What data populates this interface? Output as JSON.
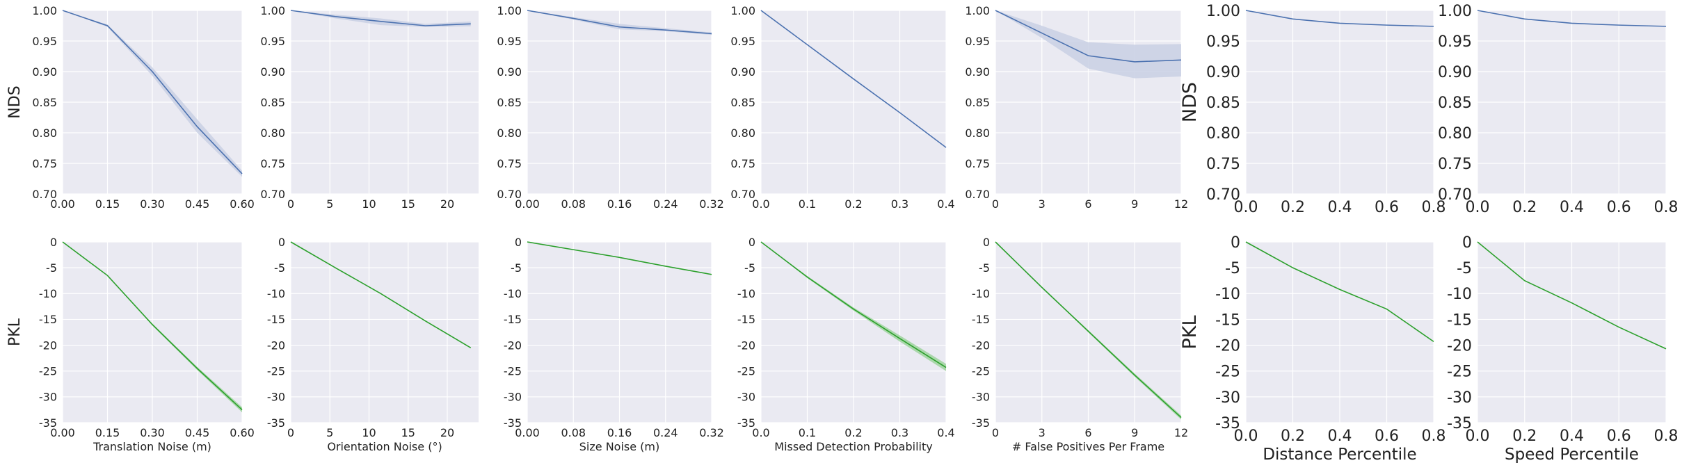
{
  "colors": {
    "panel_bg": "#eaeaf2",
    "grid": "#ffffff",
    "nds_line": "#4c72b0",
    "nds_band": "#c9d0e4",
    "pkl_line": "#2ca02c",
    "pkl_band": "#9fd39f",
    "text": "#222222"
  },
  "chart_data": [
    {
      "type": "line",
      "row": "NDS",
      "ylabel": "NDS",
      "xlabel": "",
      "x": [
        0.0,
        0.15,
        0.3,
        0.45,
        0.6
      ],
      "xticks": [
        "0.00",
        "0.15",
        "0.30",
        "0.45",
        "0.60"
      ],
      "xlim": [
        0.0,
        0.6
      ],
      "ylim": [
        0.7,
        1.0
      ],
      "yticks": [
        "0.70",
        "0.75",
        "0.80",
        "0.85",
        "0.90",
        "0.95",
        "1.00"
      ],
      "values": [
        1.0,
        0.975,
        0.9,
        0.81,
        0.733
      ],
      "band": {
        "lower": [
          1.0,
          0.973,
          0.893,
          0.8,
          0.728
        ],
        "upper": [
          1.0,
          0.977,
          0.907,
          0.822,
          0.738
        ]
      },
      "grid": true
    },
    {
      "type": "line",
      "row": "NDS",
      "ylabel": "",
      "xlabel": "",
      "x": [
        0,
        5.7,
        11.5,
        17.2,
        23
      ],
      "xticks": [
        "0",
        "5",
        "10",
        "15",
        "20"
      ],
      "xlim": [
        0,
        24
      ],
      "ylim": [
        0.7,
        1.0
      ],
      "yticks": [
        "0.70",
        "0.75",
        "0.80",
        "0.85",
        "0.90",
        "0.95",
        "1.00"
      ],
      "values": [
        1.0,
        0.99,
        0.982,
        0.975,
        0.978
      ],
      "band": {
        "lower": [
          1.0,
          0.987,
          0.976,
          0.973,
          0.974
        ],
        "upper": [
          1.0,
          0.993,
          0.987,
          0.978,
          0.982
        ]
      },
      "grid": true
    },
    {
      "type": "line",
      "row": "NDS",
      "ylabel": "",
      "xlabel": "",
      "x": [
        0.0,
        0.08,
        0.16,
        0.24,
        0.32
      ],
      "xticks": [
        "0.00",
        "0.08",
        "0.16",
        "0.24",
        "0.32"
      ],
      "xlim": [
        0.0,
        0.32
      ],
      "ylim": [
        0.7,
        1.0
      ],
      "yticks": [
        "0.70",
        "0.75",
        "0.80",
        "0.85",
        "0.90",
        "0.95",
        "1.00"
      ],
      "values": [
        1.0,
        0.987,
        0.973,
        0.968,
        0.962
      ],
      "band": {
        "lower": [
          1.0,
          0.985,
          0.969,
          0.966,
          0.96
        ],
        "upper": [
          1.0,
          0.989,
          0.978,
          0.971,
          0.964
        ]
      },
      "grid": true
    },
    {
      "type": "line",
      "row": "NDS",
      "ylabel": "",
      "xlabel": "",
      "x": [
        0.0,
        0.1,
        0.2,
        0.3,
        0.4
      ],
      "xticks": [
        "0.0",
        "0.1",
        "0.2",
        "0.3",
        "0.4"
      ],
      "xlim": [
        0.0,
        0.4
      ],
      "ylim": [
        0.7,
        1.0
      ],
      "yticks": [
        "0.70",
        "0.75",
        "0.80",
        "0.85",
        "0.90",
        "0.95",
        "1.00"
      ],
      "values": [
        1.0,
        0.944,
        0.888,
        0.833,
        0.776
      ],
      "band": {
        "lower": [
          1.0,
          0.944,
          0.888,
          0.833,
          0.776
        ],
        "upper": [
          1.0,
          0.944,
          0.888,
          0.833,
          0.776
        ]
      },
      "grid": true
    },
    {
      "type": "line",
      "row": "NDS",
      "ylabel": "",
      "xlabel": "",
      "x": [
        0,
        3,
        6,
        9,
        12
      ],
      "xticks": [
        "0",
        "3",
        "6",
        "9",
        "12"
      ],
      "xlim": [
        0,
        12
      ],
      "ylim": [
        0.7,
        1.0
      ],
      "yticks": [
        "0.70",
        "0.75",
        "0.80",
        "0.85",
        "0.90",
        "0.95",
        "1.00"
      ],
      "values": [
        1.0,
        0.963,
        0.926,
        0.916,
        0.919
      ],
      "band": {
        "lower": [
          1.0,
          0.955,
          0.905,
          0.889,
          0.892
        ],
        "upper": [
          1.0,
          0.975,
          0.948,
          0.944,
          0.945
        ]
      },
      "grid": true
    },
    {
      "type": "line",
      "row": "NDS",
      "ylabel": "NDS",
      "xlabel": "",
      "x": [
        0.0,
        0.2,
        0.4,
        0.6,
        0.8
      ],
      "xticks": [
        "0.0",
        "0.2",
        "0.4",
        "0.6",
        "0.8"
      ],
      "xlim": [
        0.0,
        0.8
      ],
      "ylim": [
        0.7,
        1.0
      ],
      "yticks": [
        "0.70",
        "0.75",
        "0.80",
        "0.85",
        "0.90",
        "0.95",
        "1.00"
      ],
      "values": [
        1.0,
        0.986,
        0.979,
        0.976,
        0.974
      ],
      "grid": true
    },
    {
      "type": "line",
      "row": "NDS",
      "ylabel": "",
      "xlabel": "",
      "x": [
        0.0,
        0.2,
        0.4,
        0.6,
        0.8
      ],
      "xticks": [
        "0.0",
        "0.2",
        "0.4",
        "0.6",
        "0.8"
      ],
      "xlim": [
        0.0,
        0.8
      ],
      "ylim": [
        0.7,
        1.0
      ],
      "yticks": [
        "0.70",
        "0.75",
        "0.80",
        "0.85",
        "0.90",
        "0.95",
        "1.00"
      ],
      "values": [
        1.0,
        0.986,
        0.979,
        0.976,
        0.974
      ],
      "grid": true
    },
    {
      "type": "line",
      "row": "PKL",
      "ylabel": "PKL",
      "xlabel": "Translation Noise (m)",
      "x": [
        0.0,
        0.15,
        0.3,
        0.45,
        0.6
      ],
      "xticks": [
        "0.00",
        "0.15",
        "0.30",
        "0.45",
        "0.60"
      ],
      "xlim": [
        0.0,
        0.6
      ],
      "ylim": [
        -35,
        0
      ],
      "yticks": [
        "-35",
        "-30",
        "-25",
        "-20",
        "-15",
        "-10",
        "-5",
        "0"
      ],
      "values": [
        0,
        -6.5,
        -16.0,
        -24.5,
        -32.5
      ],
      "band": {
        "lower": [
          0,
          -6.6,
          -16.2,
          -24.8,
          -33.0
        ],
        "upper": [
          0,
          -6.4,
          -15.8,
          -24.2,
          -32.0
        ]
      },
      "grid": true
    },
    {
      "type": "line",
      "row": "PKL",
      "ylabel": "",
      "xlabel": "Orientation Noise (°)",
      "x": [
        0,
        5.7,
        11.5,
        17.2,
        23
      ],
      "xticks": [
        "0",
        "5",
        "10",
        "15",
        "20"
      ],
      "xlim": [
        0,
        24
      ],
      "ylim": [
        -35,
        0
      ],
      "yticks": [
        "-35",
        "-30",
        "-25",
        "-20",
        "-15",
        "-10",
        "-5",
        "0"
      ],
      "values": [
        0,
        -5.0,
        -10.0,
        -15.3,
        -20.5
      ],
      "grid": true
    },
    {
      "type": "line",
      "row": "PKL",
      "ylabel": "",
      "xlabel": "Size Noise (m)",
      "x": [
        0.0,
        0.08,
        0.16,
        0.24,
        0.32
      ],
      "xticks": [
        "0.00",
        "0.08",
        "0.16",
        "0.24",
        "0.32"
      ],
      "xlim": [
        0.0,
        0.32
      ],
      "ylim": [
        -35,
        0
      ],
      "yticks": [
        "-35",
        "-30",
        "-25",
        "-20",
        "-15",
        "-10",
        "-5",
        "0"
      ],
      "values": [
        0,
        -1.5,
        -3.0,
        -4.7,
        -6.3
      ],
      "grid": true
    },
    {
      "type": "line",
      "row": "PKL",
      "ylabel": "",
      "xlabel": "Missed Detection Probability",
      "x": [
        0.0,
        0.1,
        0.2,
        0.3,
        0.4
      ],
      "xticks": [
        "0.0",
        "0.1",
        "0.2",
        "0.3",
        "0.4"
      ],
      "xlim": [
        0.0,
        0.4
      ],
      "ylim": [
        -35,
        0
      ],
      "yticks": [
        "-35",
        "-30",
        "-25",
        "-20",
        "-15",
        "-10",
        "-5",
        "0"
      ],
      "values": [
        0,
        -6.8,
        -13.0,
        -18.7,
        -24.3
      ],
      "band": {
        "lower": [
          0,
          -7.0,
          -13.3,
          -19.3,
          -25.0
        ],
        "upper": [
          0,
          -6.6,
          -12.7,
          -18.1,
          -23.6
        ]
      },
      "grid": true
    },
    {
      "type": "line",
      "row": "PKL",
      "ylabel": "",
      "xlabel": "# False Positives Per Frame",
      "x": [
        0,
        3,
        6,
        9,
        12
      ],
      "xticks": [
        "0",
        "3",
        "6",
        "9",
        "12"
      ],
      "xlim": [
        0,
        12
      ],
      "ylim": [
        -35,
        0
      ],
      "yticks": [
        "-35",
        "-30",
        "-25",
        "-20",
        "-15",
        "-10",
        "-5",
        "0"
      ],
      "values": [
        0,
        -8.8,
        -17.3,
        -25.8,
        -34.0
      ],
      "band": {
        "lower": [
          0,
          -8.9,
          -17.5,
          -26.1,
          -34.4
        ],
        "upper": [
          0,
          -8.7,
          -17.1,
          -25.5,
          -33.6
        ]
      },
      "grid": true
    },
    {
      "type": "line",
      "row": "PKL",
      "ylabel": "PKL",
      "xlabel": "Distance Percentile",
      "x": [
        0.0,
        0.2,
        0.4,
        0.6,
        0.8
      ],
      "xticks": [
        "0.0",
        "0.2",
        "0.4",
        "0.6",
        "0.8"
      ],
      "xlim": [
        0.0,
        0.8
      ],
      "ylim": [
        -35,
        0
      ],
      "yticks": [
        "-35",
        "-30",
        "-25",
        "-20",
        "-15",
        "-10",
        "-5",
        "0"
      ],
      "values": [
        0,
        -5.0,
        -9.2,
        -13.0,
        -19.3
      ],
      "grid": true
    },
    {
      "type": "line",
      "row": "PKL",
      "ylabel": "",
      "xlabel": "Speed Percentile",
      "x": [
        0.0,
        0.2,
        0.4,
        0.6,
        0.8
      ],
      "xticks": [
        "0.0",
        "0.2",
        "0.4",
        "0.6",
        "0.8"
      ],
      "xlim": [
        0.0,
        0.8
      ],
      "ylim": [
        -35,
        0
      ],
      "yticks": [
        "-35",
        "-30",
        "-25",
        "-20",
        "-15",
        "-10",
        "-5",
        "0"
      ],
      "values": [
        0,
        -7.5,
        -11.8,
        -16.5,
        -20.7
      ],
      "grid": true
    }
  ]
}
